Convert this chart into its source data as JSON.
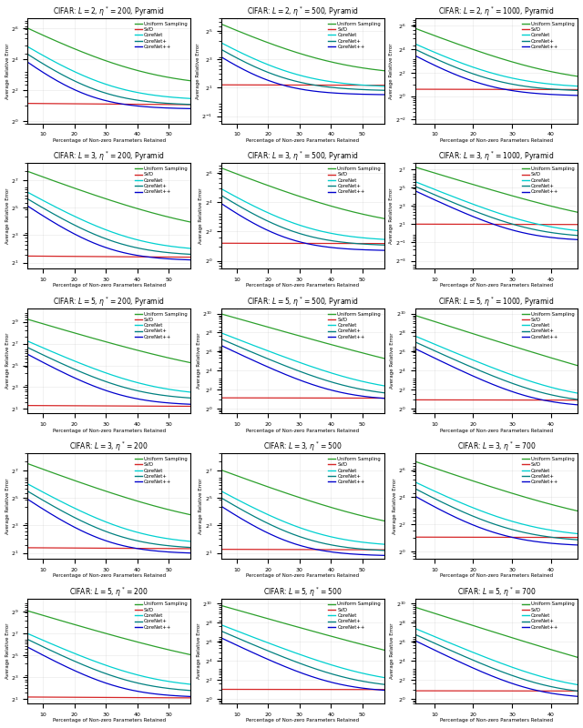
{
  "subplots": [
    {
      "title": "CIFAR: $L = 2$, $\\eta^* = 200$, Pyramid",
      "ylim": [
        0.9,
        100
      ],
      "yticks": [
        1,
        4,
        16,
        64
      ],
      "ytick_labels": [
        "$2^0$",
        "$2^2$",
        "$2^4$",
        "$2^6$"
      ],
      "xmax": 57,
      "xlim": [
        5,
        57
      ],
      "curves": [
        [
          64,
          4.5,
          0.07
        ],
        [
          2.2,
          1.85,
          0.008
        ],
        [
          28,
          2.5,
          0.09
        ],
        [
          20,
          2.0,
          0.1
        ],
        [
          14,
          1.7,
          0.11
        ]
      ]
    },
    {
      "title": "CIFAR: $L = 2$, $\\eta^* = 500$, Pyramid",
      "ylim": [
        0.35,
        60
      ],
      "yticks": [
        0.5,
        2,
        8,
        32
      ],
      "ytick_labels": [
        "$2^{-1}$",
        "$2^1$",
        "$2^3$",
        "$2^5$"
      ],
      "xmax": 57,
      "xlim": [
        5,
        57
      ],
      "curves": [
        [
          45,
          3.5,
          0.07
        ],
        [
          2.3,
          2.1,
          0.005
        ],
        [
          18,
          2.0,
          0.09
        ],
        [
          13,
          1.7,
          0.1
        ],
        [
          9,
          1.4,
          0.11
        ]
      ]
    },
    {
      "title": "CIFAR: $L = 2$, $\\eta^* = 1000$, Pyramid",
      "ylim": [
        0.2,
        100
      ],
      "yticks": [
        0.25,
        1,
        4,
        16,
        64
      ],
      "ytick_labels": [
        "$2^{-2}$",
        "$2^0$",
        "$2^2$",
        "$2^4$",
        "$2^6$"
      ],
      "xmax": 47,
      "xlim": [
        5,
        47
      ],
      "curves": [
        [
          55,
          2.0,
          0.09
        ],
        [
          1.5,
          1.35,
          0.005
        ],
        [
          22,
          1.6,
          0.11
        ],
        [
          16,
          1.3,
          0.12
        ],
        [
          11,
          1.0,
          0.13
        ]
      ]
    },
    {
      "title": "CIFAR: $L = 3$, $\\eta^* = 200$, Pyramid",
      "ylim": [
        1.5,
        300
      ],
      "yticks": [
        2,
        8,
        32,
        128
      ],
      "ytick_labels": [
        "$2^1$",
        "$2^3$",
        "$2^5$",
        "$2^7$"
      ],
      "xmax": 57,
      "xlim": [
        5,
        57
      ],
      "curves": [
        [
          200,
          7,
          0.06
        ],
        [
          2.8,
          2.3,
          0.007
        ],
        [
          70,
          3.5,
          0.09
        ],
        [
          50,
          2.8,
          0.1
        ],
        [
          35,
          2.2,
          0.11
        ]
      ]
    },
    {
      "title": "CIFAR: $L = 3$, $\\eta^* = 500$, Pyramid",
      "ylim": [
        0.7,
        100
      ],
      "yticks": [
        1,
        4,
        16,
        64
      ],
      "ytick_labels": [
        "$2^0$",
        "$2^2$",
        "$2^4$",
        "$2^6$"
      ],
      "xmax": 57,
      "xlim": [
        5,
        57
      ],
      "curves": [
        [
          80,
          4.0,
          0.06
        ],
        [
          2.3,
          2.15,
          0.005
        ],
        [
          30,
          2.5,
          0.09
        ],
        [
          22,
          2.0,
          0.1
        ],
        [
          15,
          1.6,
          0.11
        ]
      ]
    },
    {
      "title": "CIFAR: $L = 3$, $\\eta^* = 1000$, Pyramid",
      "ylim": [
        0.07,
        200
      ],
      "yticks": [
        0.125,
        0.5,
        2,
        8,
        32,
        128
      ],
      "ytick_labels": [
        "$2^{-3}$",
        "$2^{-1}$",
        "$2^1$",
        "$2^3$",
        "$2^5$",
        "$2^7$"
      ],
      "xmax": 47,
      "xlim": [
        5,
        47
      ],
      "curves": [
        [
          150,
          1.5,
          0.09
        ],
        [
          2.0,
          1.7,
          0.005
        ],
        [
          50,
          0.9,
          0.12
        ],
        [
          35,
          0.7,
          0.13
        ],
        [
          25,
          0.55,
          0.14
        ]
      ]
    },
    {
      "title": "CIFAR: $L = 5$, $\\eta^* = 200$, Pyramid",
      "ylim": [
        1.5,
        1200
      ],
      "yticks": [
        2,
        8,
        32,
        128,
        512
      ],
      "ytick_labels": [
        "$2^1$",
        "$2^3$",
        "$2^5$",
        "$2^7$",
        "$2^9$"
      ],
      "xmax": 57,
      "xlim": [
        5,
        57
      ],
      "curves": [
        [
          600,
          12,
          0.06
        ],
        [
          2.5,
          2.1,
          0.007
        ],
        [
          150,
          4.5,
          0.09
        ],
        [
          100,
          3.5,
          0.1
        ],
        [
          65,
          2.5,
          0.11
        ]
      ]
    },
    {
      "title": "CIFAR: $L = 5$, $\\eta^* = 500$, Pyramid",
      "ylim": [
        0.7,
        1500
      ],
      "yticks": [
        1,
        4,
        16,
        64,
        256,
        1024
      ],
      "ytick_labels": [
        "$2^0$",
        "$2^2$",
        "$2^4$",
        "$2^6$",
        "$2^8$",
        "$2^{10}$"
      ],
      "xmax": 57,
      "xlim": [
        5,
        57
      ],
      "curves": [
        [
          1000,
          5,
          0.065
        ],
        [
          2.2,
          2.0,
          0.005
        ],
        [
          250,
          3.0,
          0.09
        ],
        [
          160,
          2.3,
          0.1
        ],
        [
          100,
          1.8,
          0.11
        ]
      ]
    },
    {
      "title": "CIFAR: $L = 5$, $\\eta^* = 1000$, Pyramid",
      "ylim": [
        0.7,
        1500
      ],
      "yticks": [
        1,
        4,
        16,
        64,
        256,
        1024
      ],
      "ytick_labels": [
        "$2^0$",
        "$2^2$",
        "$2^4$",
        "$2^6$",
        "$2^8$",
        "$2^{10}$"
      ],
      "xmax": 47,
      "xlim": [
        5,
        47
      ],
      "curves": [
        [
          900,
          2.5,
          0.09
        ],
        [
          1.9,
          1.7,
          0.005
        ],
        [
          200,
          1.8,
          0.12
        ],
        [
          130,
          1.4,
          0.13
        ],
        [
          80,
          1.1,
          0.14
        ]
      ]
    },
    {
      "title": "CIFAR: $L = 3$, $\\eta^* = 200$",
      "ylim": [
        1.5,
        300
      ],
      "yticks": [
        2,
        8,
        32,
        128
      ],
      "ytick_labels": [
        "$2^1$",
        "$2^3$",
        "$2^5$",
        "$2^7$"
      ],
      "xmax": 57,
      "xlim": [
        5,
        57
      ],
      "curves": [
        [
          180,
          6,
          0.06
        ],
        [
          2.6,
          2.2,
          0.007
        ],
        [
          65,
          3.0,
          0.09
        ],
        [
          45,
          2.4,
          0.1
        ],
        [
          30,
          1.9,
          0.11
        ]
      ]
    },
    {
      "title": "CIFAR: $L = 3$, $\\eta^* = 500$",
      "ylim": [
        1.5,
        300
      ],
      "yticks": [
        2,
        8,
        32,
        128
      ],
      "ytick_labels": [
        "$2^1$",
        "$2^3$",
        "$2^5$",
        "$2^7$"
      ],
      "xmax": 57,
      "xlim": [
        5,
        57
      ],
      "curves": [
        [
          130,
          4.5,
          0.06
        ],
        [
          2.4,
          2.15,
          0.005
        ],
        [
          45,
          2.7,
          0.09
        ],
        [
          32,
          2.1,
          0.1
        ],
        [
          21,
          1.7,
          0.11
        ]
      ]
    },
    {
      "title": "CIFAR: $L = 3$, $\\eta^* = 700$",
      "ylim": [
        0.7,
        150
      ],
      "yticks": [
        1,
        4,
        16,
        64
      ],
      "ytick_labels": [
        "$2^0$",
        "$2^2$",
        "$2^4$",
        "$2^6$"
      ],
      "xmax": 47,
      "xlim": [
        5,
        47
      ],
      "curves": [
        [
          100,
          2.8,
          0.07
        ],
        [
          2.1,
          1.9,
          0.005
        ],
        [
          35,
          2.0,
          0.1
        ],
        [
          25,
          1.6,
          0.11
        ],
        [
          17,
          1.3,
          0.12
        ]
      ]
    },
    {
      "title": "CIFAR: $L = 5$, $\\eta^* = 200$",
      "ylim": [
        1.5,
        1200
      ],
      "yticks": [
        2,
        8,
        32,
        128,
        512
      ],
      "ytick_labels": [
        "$2^1$",
        "$2^3$",
        "$2^5$",
        "$2^7$",
        "$2^9$"
      ],
      "xmax": 57,
      "xlim": [
        5,
        57
      ],
      "curves": [
        [
          550,
          10,
          0.06
        ],
        [
          2.3,
          1.9,
          0.007
        ],
        [
          130,
          4.0,
          0.09
        ],
        [
          90,
          3.0,
          0.1
        ],
        [
          55,
          2.2,
          0.11
        ]
      ]
    },
    {
      "title": "CIFAR: $L = 5$, $\\eta^* = 500$",
      "ylim": [
        0.7,
        1500
      ],
      "yticks": [
        1,
        4,
        16,
        64,
        256,
        1024
      ],
      "ytick_labels": [
        "$2^0$",
        "$2^2$",
        "$2^4$",
        "$2^6$",
        "$2^8$",
        "$2^{10}$"
      ],
      "xmax": 57,
      "xlim": [
        5,
        57
      ],
      "curves": [
        [
          900,
          4.5,
          0.065
        ],
        [
          2.0,
          1.85,
          0.005
        ],
        [
          220,
          2.7,
          0.09
        ],
        [
          140,
          2.1,
          0.1
        ],
        [
          85,
          1.6,
          0.11
        ]
      ]
    },
    {
      "title": "CIFAR: $L = 5$, $\\eta^* = 700$",
      "ylim": [
        0.7,
        1500
      ],
      "yticks": [
        1,
        4,
        16,
        64,
        256,
        1024
      ],
      "ytick_labels": [
        "$2^0$",
        "$2^2$",
        "$2^4$",
        "$2^6$",
        "$2^8$",
        "$2^{10}$"
      ],
      "xmax": 47,
      "xlim": [
        5,
        47
      ],
      "curves": [
        [
          800,
          2.3,
          0.09
        ],
        [
          1.8,
          1.65,
          0.005
        ],
        [
          170,
          1.7,
          0.12
        ],
        [
          110,
          1.3,
          0.13
        ],
        [
          70,
          1.0,
          0.14
        ]
      ]
    }
  ],
  "line_colors": [
    "#2ca02c",
    "#d62728",
    "#00d0d0",
    "#008080",
    "#0000cc"
  ],
  "legend_labels": [
    "Uniform Sampling",
    "SVD",
    "CoreNet",
    "CoreNet+",
    "CoreNet++"
  ],
  "xlabel": "Percentage of Non-zero Parameters Retained",
  "ylabel": "Average Relative Error"
}
